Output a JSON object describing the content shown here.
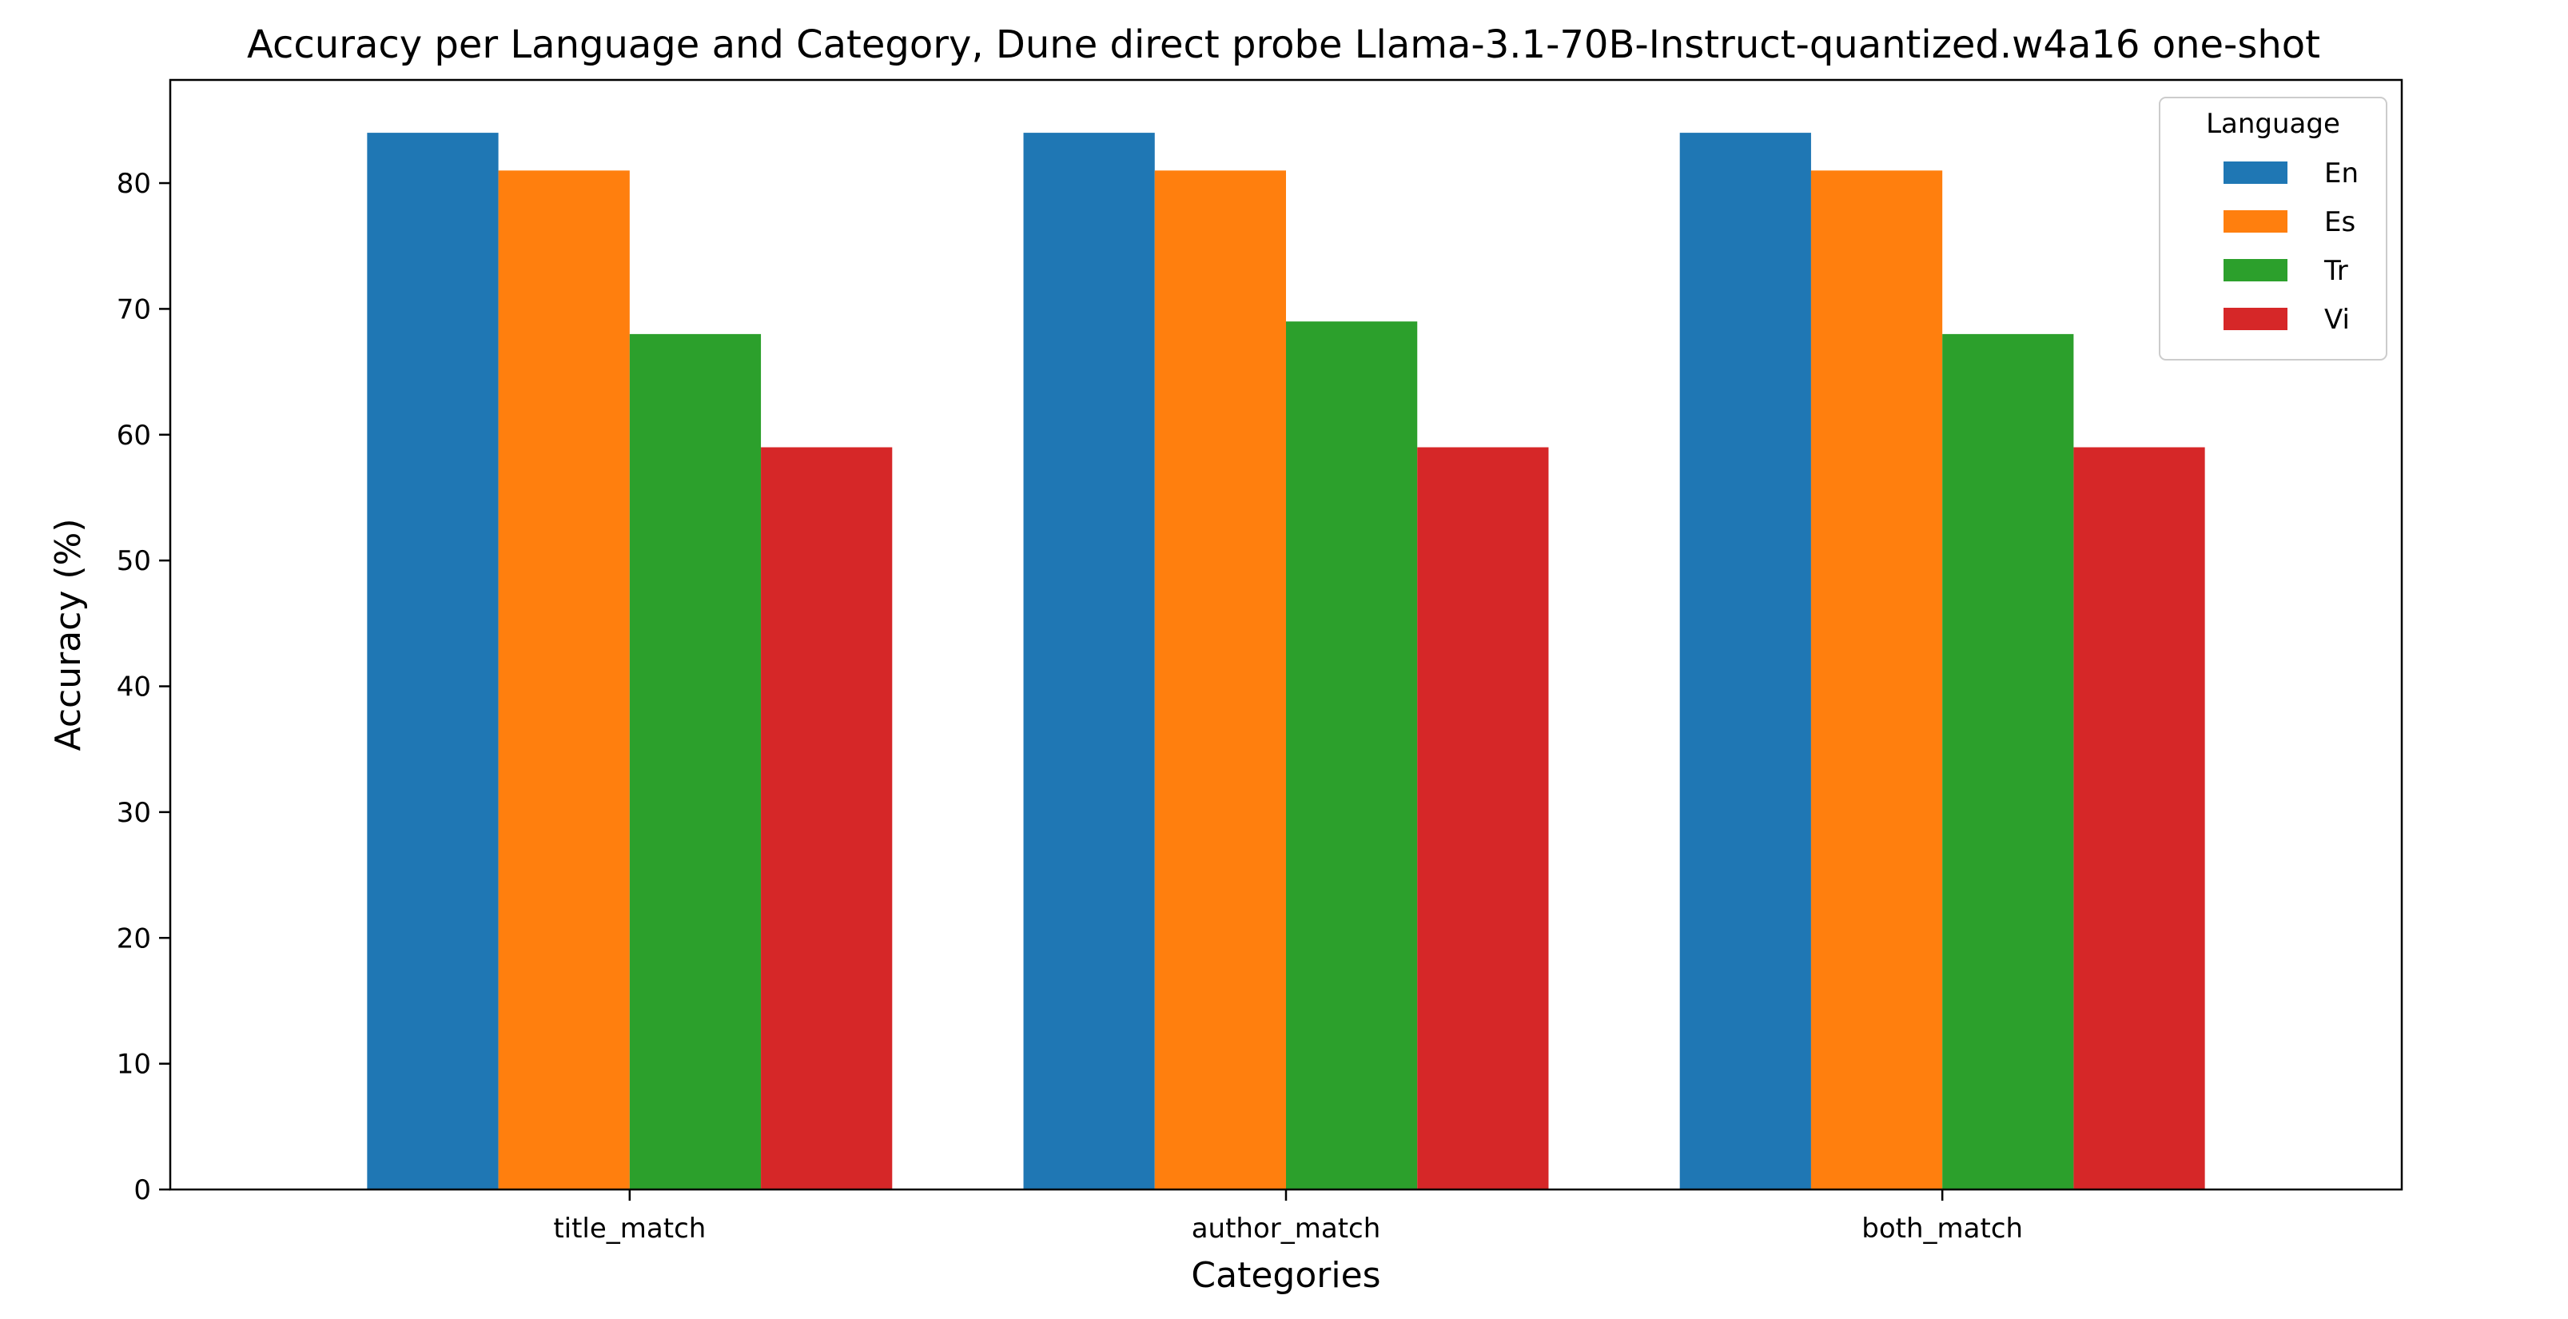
{
  "chart_data": {
    "type": "bar",
    "title": "Accuracy per Language and Category, Dune direct probe Llama-3.1-70B-Instruct-quantized.w4a16 one-shot",
    "xlabel": "Categories",
    "ylabel": "Accuracy (%)",
    "categories": [
      "title_match",
      "author_match",
      "both_match"
    ],
    "series": [
      {
        "name": "En",
        "color": "#1f77b4",
        "values": [
          84,
          84,
          84
        ]
      },
      {
        "name": "Es",
        "color": "#ff7f0e",
        "values": [
          81,
          81,
          81
        ]
      },
      {
        "name": "Tr",
        "color": "#2ca02c",
        "values": [
          68,
          69,
          68
        ]
      },
      {
        "name": "Vi",
        "color": "#d62728",
        "values": [
          59,
          59,
          59
        ]
      }
    ],
    "ylim": [
      0,
      88.2
    ],
    "yticks": [
      0,
      10,
      20,
      30,
      40,
      50,
      60,
      70,
      80
    ],
    "grid": false,
    "legend": {
      "title": "Language",
      "placement": "top-right"
    }
  }
}
